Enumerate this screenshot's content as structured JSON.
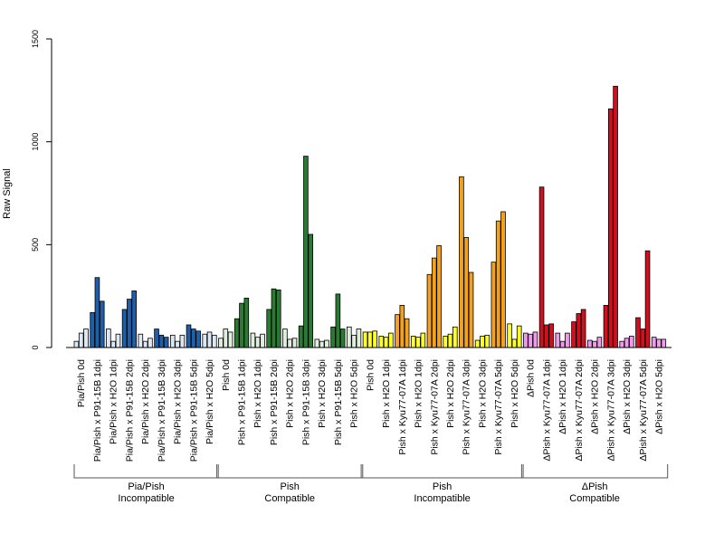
{
  "chart_data": {
    "type": "bar",
    "ylabel": "Raw Signal",
    "ylim": [
      0,
      1500
    ],
    "yticks": [
      "0",
      "500",
      "1000",
      "1500"
    ],
    "bars_per_category": 3,
    "categories": [
      "Pia/Pish 0d",
      "Pia/Pish x P91-15B 1dpi",
      "Pia/Pish x H2O 1dpi",
      "Pia/Pish x P91-15B 2dpi",
      "Pia/Pish x H2O 2dpi",
      "Pia/Pish x P91-15B 3dpi",
      "Pia/Pish x H2O 3dpi",
      "Pia/Pish x P91-15B 5dpi",
      "Pia/Pish x H2O 5dpi",
      "Pish 0d",
      "Pish x P91-15B 1dpi",
      "Pish x H2O 1dpi",
      "Pish x P91-15B 2dpi",
      "Pish x H2O 2dpi",
      "Pish x P91-15B 3dpi",
      "Pish x H2O 3dpi",
      "Pish x P91-15B 5dpi",
      "Pish x H2O 5dpi",
      "Pish 0d",
      "Pish x H2O 1dpi",
      "Pish x Kyu77-07A 1dpi",
      "Pish x H2O 1dpi",
      "Pish x Kyu77-07A 2dpi",
      "Pish x H2O 2dpi",
      "Pish x Kyu77-07A 3dpi",
      "Pish x H2O 3dpi",
      "Pish x Kyu77-07A 5dpi",
      "Pish x H2O 5dpi",
      "ΔPish 0d",
      "ΔPish x Kyu77-07A 1dpi",
      "ΔPish x H2O 1dpi",
      "ΔPish x Kyu77-07A 2dpi",
      "ΔPish x H2O 2dpi",
      "ΔPish x Kyu77-07A 3dpi",
      "ΔPish x H2O 3dpi",
      "ΔPish x Kyu77-07A 5dpi",
      "ΔPish x H2O 5dpi"
    ],
    "values": [
      [
        30,
        70,
        90
      ],
      [
        170,
        340,
        225
      ],
      [
        90,
        30,
        65
      ],
      [
        185,
        235,
        275
      ],
      [
        65,
        30,
        45
      ],
      [
        90,
        60,
        50
      ],
      [
        60,
        30,
        60
      ],
      [
        110,
        90,
        80
      ],
      [
        65,
        75,
        60
      ],
      [
        45,
        90,
        75
      ],
      [
        140,
        215,
        240
      ],
      [
        70,
        50,
        65
      ],
      [
        185,
        285,
        280
      ],
      [
        90,
        40,
        45
      ],
      [
        105,
        930,
        550
      ],
      [
        40,
        30,
        35
      ],
      [
        100,
        260,
        90
      ],
      [
        100,
        60,
        90
      ],
      [
        75,
        75,
        80
      ],
      [
        55,
        50,
        70
      ],
      [
        160,
        205,
        140
      ],
      [
        55,
        50,
        70
      ],
      [
        355,
        435,
        495
      ],
      [
        55,
        65,
        100
      ],
      [
        830,
        535,
        365
      ],
      [
        35,
        55,
        60
      ],
      [
        415,
        615,
        660
      ],
      [
        115,
        40,
        105
      ],
      [
        70,
        65,
        75
      ],
      [
        780,
        110,
        115
      ],
      [
        70,
        30,
        70
      ],
      [
        125,
        165,
        185
      ],
      [
        35,
        30,
        50
      ],
      [
        205,
        1160,
        1270
      ],
      [
        30,
        45,
        55
      ],
      [
        145,
        90,
        470
      ],
      [
        50,
        40,
        40
      ]
    ],
    "category_kind": [
      "c",
      "t",
      "w",
      "t",
      "w",
      "t",
      "w",
      "t",
      "w",
      "c",
      "t",
      "w",
      "t",
      "w",
      "t",
      "w",
      "t",
      "w",
      "c",
      "w",
      "t",
      "w",
      "t",
      "w",
      "t",
      "w",
      "t",
      "w",
      "c",
      "t",
      "w",
      "t",
      "w",
      "t",
      "w",
      "t",
      "w"
    ],
    "groups": [
      {
        "line1": "Pia/Pish",
        "line2": "Incompatible",
        "start": 0,
        "end": 8,
        "colors": {
          "t": "#1f5fa8",
          "w": "#dde8f4",
          "c": "#dde8f4"
        }
      },
      {
        "line1": "Pish",
        "line2": "Compatible",
        "start": 9,
        "end": 17,
        "colors": {
          "t": "#2a7a32",
          "w": "#dfeedd",
          "c": "#dfeedd"
        }
      },
      {
        "line1": "Pish",
        "line2": "Incompatible",
        "start": 18,
        "end": 27,
        "colors": {
          "t": "#f2a21d",
          "w": "#ffff2a",
          "c": "#ffff2a"
        }
      },
      {
        "line1": "ΔPish",
        "line2": "Compatible",
        "start": 28,
        "end": 36,
        "colors": {
          "t": "#d0101e",
          "w": "#ef9aea",
          "c": "#ef9aea"
        }
      }
    ]
  }
}
